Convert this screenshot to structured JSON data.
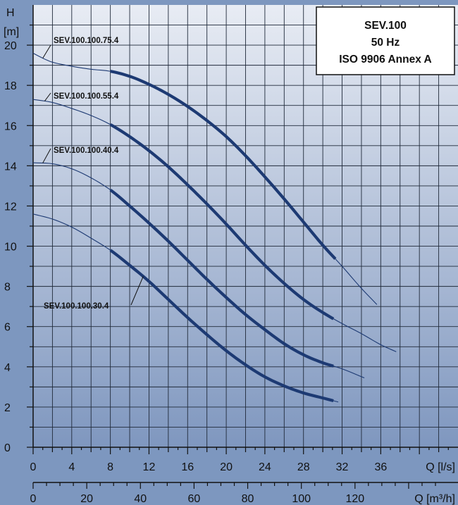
{
  "chart_data": {
    "type": "line",
    "title_lines": [
      "SEV.100",
      "50 Hz",
      "ISO 9906 Annex A"
    ],
    "ylabel_lines": [
      "H",
      "[m]"
    ],
    "xlabel": "Q [l/s]",
    "xlabel2": "Q [m³/h]",
    "xlim": [
      0,
      44
    ],
    "ylim": [
      0,
      22
    ],
    "x2lim": [
      0,
      158.4
    ],
    "xticks": [
      0,
      4,
      8,
      12,
      16,
      20,
      24,
      28,
      32,
      36
    ],
    "yticks": [
      0,
      2,
      4,
      6,
      8,
      10,
      12,
      14,
      16,
      18,
      20
    ],
    "x2ticks": [
      0,
      20,
      40,
      60,
      80,
      100,
      120
    ],
    "grid": true,
    "colors": {
      "background": "#7d97bf",
      "plot_top": "#e8ecf4",
      "plot_bottom": "#7f97bf",
      "curve": "#1d3a73",
      "grid": "#202a3a"
    },
    "series": [
      {
        "name": "SEV.100.100.75.4",
        "points": [
          [
            0,
            19.6
          ],
          [
            1,
            19.35
          ],
          [
            2,
            19.15
          ],
          [
            4,
            18.95
          ],
          [
            6,
            18.8
          ],
          [
            8,
            18.7
          ],
          [
            10,
            18.45
          ],
          [
            12,
            18.05
          ],
          [
            14,
            17.55
          ],
          [
            16,
            16.95
          ],
          [
            18,
            16.25
          ],
          [
            20,
            15.45
          ],
          [
            22,
            14.5
          ],
          [
            24,
            13.45
          ],
          [
            26,
            12.35
          ],
          [
            28,
            11.2
          ],
          [
            30,
            10.05
          ],
          [
            32,
            9.0
          ],
          [
            34,
            7.9
          ],
          [
            35.6,
            7.1
          ]
        ],
        "op_range": [
          8,
          31.3
        ]
      },
      {
        "name": "SEV.100.100.55.4",
        "points": [
          [
            0,
            17.3
          ],
          [
            2,
            17.15
          ],
          [
            4,
            16.85
          ],
          [
            6,
            16.5
          ],
          [
            8,
            16.05
          ],
          [
            10,
            15.45
          ],
          [
            12,
            14.75
          ],
          [
            14,
            13.95
          ],
          [
            16,
            13.05
          ],
          [
            18,
            12.1
          ],
          [
            20,
            11.1
          ],
          [
            22,
            10.05
          ],
          [
            24,
            9.05
          ],
          [
            26,
            8.15
          ],
          [
            28,
            7.35
          ],
          [
            30,
            6.7
          ],
          [
            32,
            6.15
          ],
          [
            34,
            5.65
          ],
          [
            36,
            5.1
          ],
          [
            37.6,
            4.75
          ]
        ],
        "op_range": [
          8,
          31.1
        ]
      },
      {
        "name": "SEV.100.100.40.4",
        "points": [
          [
            0,
            14.15
          ],
          [
            2,
            14.1
          ],
          [
            4,
            13.85
          ],
          [
            6,
            13.4
          ],
          [
            8,
            12.8
          ],
          [
            10,
            12.0
          ],
          [
            12,
            11.15
          ],
          [
            14,
            10.25
          ],
          [
            16,
            9.3
          ],
          [
            18,
            8.35
          ],
          [
            20,
            7.45
          ],
          [
            22,
            6.6
          ],
          [
            24,
            5.85
          ],
          [
            26,
            5.15
          ],
          [
            28,
            4.6
          ],
          [
            30,
            4.2
          ],
          [
            32,
            3.9
          ],
          [
            34.3,
            3.45
          ]
        ],
        "op_range": [
          8,
          31.1
        ]
      },
      {
        "name": "SEV.100.100.30.4",
        "points": [
          [
            0,
            11.6
          ],
          [
            2,
            11.35
          ],
          [
            4,
            10.95
          ],
          [
            6,
            10.4
          ],
          [
            8,
            9.8
          ],
          [
            10,
            9.05
          ],
          [
            12,
            8.25
          ],
          [
            14,
            7.35
          ],
          [
            16,
            6.45
          ],
          [
            18,
            5.6
          ],
          [
            20,
            4.8
          ],
          [
            22,
            4.1
          ],
          [
            24,
            3.5
          ],
          [
            26,
            3.05
          ],
          [
            28,
            2.7
          ],
          [
            30,
            2.45
          ],
          [
            31.6,
            2.25
          ]
        ],
        "op_range": [
          8,
          31.1
        ]
      }
    ],
    "labels": [
      {
        "text": "SEV.100.100.75.4",
        "series": 0
      },
      {
        "text": "SEV.100.100.55.4",
        "series": 1
      },
      {
        "text": "SEV.100.100.40.4",
        "series": 2
      },
      {
        "text": "SEV.100.100.30.4",
        "series": 3
      }
    ]
  }
}
